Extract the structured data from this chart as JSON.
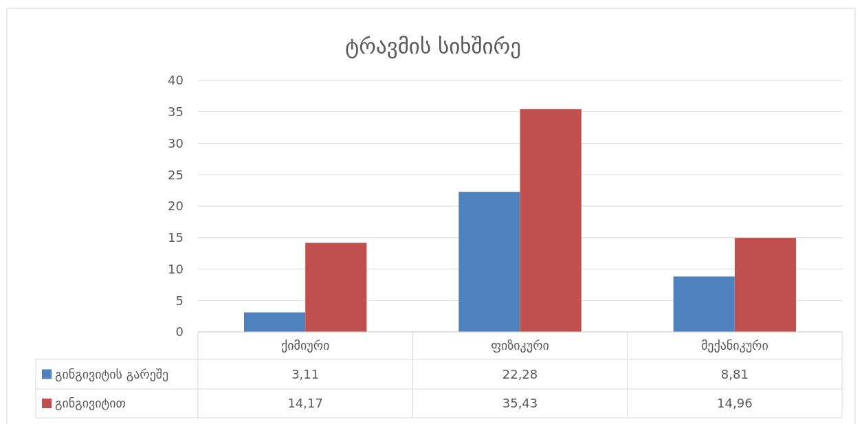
{
  "chart_data": {
    "type": "bar",
    "title": "ტრავმის სიხშირე",
    "categories": [
      "ქიმიური",
      "ფიზიკური",
      "მექანიკური"
    ],
    "series": [
      {
        "name": "გინგივიტის გარეშე",
        "color": "#4f81bd",
        "values": [
          3.11,
          22.28,
          8.81
        ],
        "value_labels": [
          "3,11",
          "22,28",
          "8,81"
        ]
      },
      {
        "name": "გინგივიტით",
        "color": "#c0504d",
        "values": [
          14.17,
          35.43,
          14.96
        ],
        "value_labels": [
          "14,17",
          "35,43",
          "14,96"
        ]
      }
    ],
    "ylim": [
      0,
      40
    ],
    "yticks": [
      0,
      5,
      10,
      15,
      20,
      25,
      30,
      35,
      40
    ],
    "grid": "y",
    "legend": "bottom"
  }
}
